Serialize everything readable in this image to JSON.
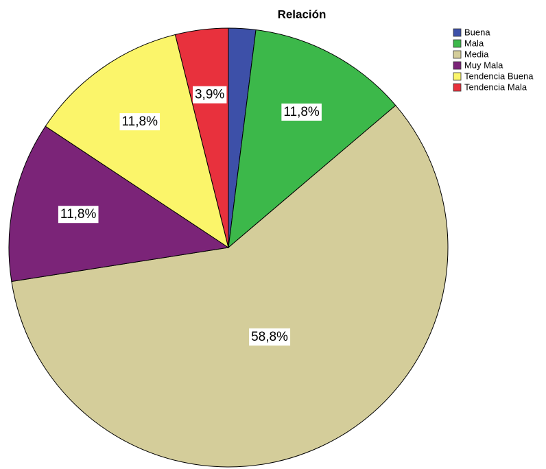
{
  "chart_data": {
    "type": "pie",
    "title": "Relación",
    "categories": [
      "Buena",
      "Mala",
      "Media",
      "Muy Mala",
      "Tendencia Buena",
      "Tendencia Mala"
    ],
    "values": [
      2.0,
      11.8,
      58.8,
      11.8,
      11.8,
      3.9
    ],
    "value_labels": [
      null,
      "11,8%",
      "58,8%",
      "11,8%",
      "11,8%",
      "3,9%"
    ],
    "colors": [
      "#3d50a8",
      "#3cb84a",
      "#d4cd9a",
      "#7b2478",
      "#fbf56a",
      "#e8313d"
    ],
    "legend": "top-right"
  }
}
